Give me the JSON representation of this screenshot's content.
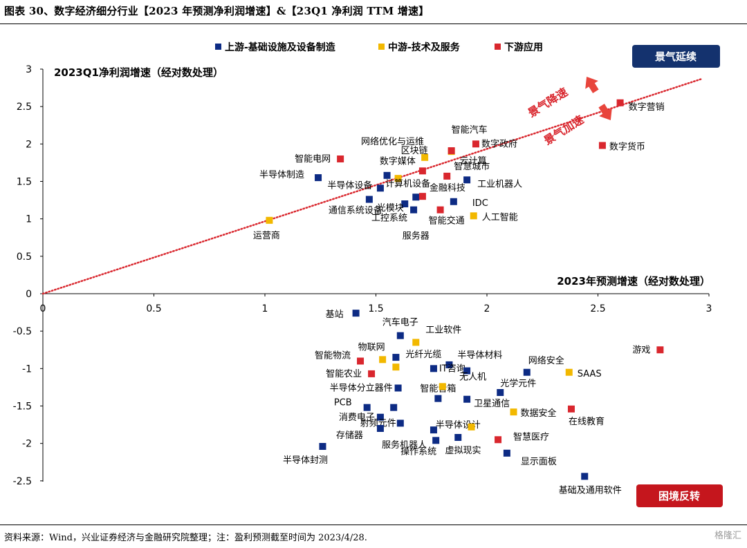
{
  "title": "图表 30、数字经济细分行业【2023 年预测净利润增速】&【23Q1 净利润 TTM 增速】",
  "source": "资料来源：Wind，兴业证券经济与金融研究院整理；注：盈利预测截至时间为 2023/4/28.",
  "watermark": "格隆汇",
  "chart_data": {
    "type": "scatter",
    "xlabel": "2023年预测增速（经对数处理）",
    "ylabel": "2023Q1净利润增速（经对数处理）",
    "xlim": [
      0,
      3
    ],
    "ylim": [
      -2.5,
      3
    ],
    "xticks": [
      "0",
      "0.5",
      "1",
      "1.5",
      "2",
      "2.5",
      "3"
    ],
    "yticks": [
      "3",
      "2.5",
      "2",
      "1.5",
      "1",
      "0.5",
      "0",
      "-0.5",
      "-1",
      "-1.5",
      "-2",
      "-2.5"
    ],
    "grid": false,
    "legend_position": "top",
    "diagonal": {
      "from": [
        0,
        0
      ],
      "to": [
        3,
        3
      ],
      "style": "dotted",
      "color": "#d9272e"
    },
    "annotations": {
      "box_top": "景气延续",
      "box_bottom": "困境反转",
      "arrow_up_text": "景气降速",
      "arrow_down_text": "景气加速"
    },
    "series": [
      {
        "name": "上游-基础设施及设备制造",
        "color": "#0d2b84",
        "points": [
          {
            "label": "半导体制造",
            "x": 1.24,
            "y": 1.55
          },
          {
            "label": "网络优化与运维",
            "x": 1.55,
            "y": 1.58
          },
          {
            "label": "半导体设备",
            "x": 1.52,
            "y": 1.41
          },
          {
            "label": "通信系统设备",
            "x": 1.47,
            "y": 1.26
          },
          {
            "label": "光模块",
            "x": 1.63,
            "y": 1.2
          },
          {
            "label": "工控系统",
            "x": 1.67,
            "y": 1.12
          },
          {
            "label": "服务器",
            "x": 1.68,
            "y": 1.29
          },
          {
            "label": "工业机器人",
            "x": 1.91,
            "y": 1.52
          },
          {
            "label": "IDC",
            "x": 1.85,
            "y": 1.23
          },
          {
            "label": "基站",
            "x": 1.41,
            "y": -0.26
          },
          {
            "label": "汽车电子",
            "x": 1.61,
            "y": -0.56
          },
          {
            "label": "光纤光缆",
            "x": 1.59,
            "y": -0.85
          },
          {
            "label": "半导体材料",
            "x": 1.83,
            "y": -0.95
          },
          {
            "label": "IT咨询",
            "x": 1.76,
            "y": -1.0
          },
          {
            "label": "无人机",
            "x": 1.91,
            "y": -1.03
          },
          {
            "label": "网络安全",
            "x": 2.18,
            "y": -1.05
          },
          {
            "label": "半导体分立器件",
            "x": 1.6,
            "y": -1.26
          },
          {
            "label": "光学元件",
            "x": 2.06,
            "y": -1.32
          },
          {
            "label": "智能音箱",
            "x": 1.78,
            "y": -1.4
          },
          {
            "label": "卫星通信",
            "x": 1.91,
            "y": -1.41
          },
          {
            "label": "PCB",
            "x": 1.46,
            "y": -1.52
          },
          {
            "label": "办公软件",
            "x": 1.58,
            "y": -1.52
          },
          {
            "label": "消费电子",
            "x": 1.52,
            "y": -1.65
          },
          {
            "label": "射频元件",
            "x": 1.61,
            "y": -1.73
          },
          {
            "label": "存储器",
            "x": 1.52,
            "y": -1.8
          },
          {
            "label": "服务机器人",
            "x": 1.76,
            "y": -1.82
          },
          {
            "label": "半导体设计",
            "x": 1.87,
            "y": -1.92
          },
          {
            "label": "操作系统",
            "x": 1.77,
            "y": -1.96
          },
          {
            "label": "半导体封测",
            "x": 1.26,
            "y": -2.04
          },
          {
            "label": "显示面板",
            "x": 2.09,
            "y": -2.13
          },
          {
            "label": "基础及通用软件",
            "x": 2.44,
            "y": -2.44
          }
        ]
      },
      {
        "name": "中游-技术及服务",
        "color": "#f2b800",
        "points": [
          {
            "label": "运营商",
            "x": 1.02,
            "y": 0.98
          },
          {
            "label": "区块链",
            "x": 1.72,
            "y": 1.82
          },
          {
            "label": "云计算",
            "x": 1.84,
            "y": 1.9
          },
          {
            "label": "计算机设备",
            "x": 1.6,
            "y": 1.54
          },
          {
            "label": "人工智能",
            "x": 1.94,
            "y": 1.04
          },
          {
            "label": "工业软件",
            "x": 1.68,
            "y": -0.65
          },
          {
            "label": "物联网",
            "x": 1.53,
            "y": -0.88
          },
          {
            "label": "智能农业",
            "x": 1.59,
            "y": -0.98
          },
          {
            "label": "智能音箱",
            "x": 1.8,
            "y": -1.24
          },
          {
            "label": "SAAS",
            "x": 2.37,
            "y": -1.05
          },
          {
            "label": "数据安全",
            "x": 2.12,
            "y": -1.58
          },
          {
            "label": "虚拟现实",
            "x": 1.93,
            "y": -1.78
          }
        ]
      },
      {
        "name": "下游应用",
        "color": "#d9272e",
        "points": [
          {
            "label": "智能电网",
            "x": 1.34,
            "y": 1.8
          },
          {
            "label": "数字媒体",
            "x": 1.71,
            "y": 1.64
          },
          {
            "label": "智能汽车",
            "x": 1.84,
            "y": 1.91
          },
          {
            "label": "数字政府",
            "x": 1.95,
            "y": 2.0
          },
          {
            "label": "智慧城市",
            "x": 1.82,
            "y": 1.57
          },
          {
            "label": "金融科技",
            "x": 1.71,
            "y": 1.3
          },
          {
            "label": "智能交通",
            "x": 1.79,
            "y": 1.12
          },
          {
            "label": "数字营销",
            "x": 2.6,
            "y": 2.55
          },
          {
            "label": "数字货币",
            "x": 2.52,
            "y": 1.98
          },
          {
            "label": "智能物流",
            "x": 1.43,
            "y": -0.9
          },
          {
            "label": "智能农业",
            "x": 1.48,
            "y": -1.07
          },
          {
            "label": "游戏",
            "x": 2.78,
            "y": -0.75
          },
          {
            "label": "在线教育",
            "x": 2.38,
            "y": -1.54
          },
          {
            "label": "智慧医疗",
            "x": 2.05,
            "y": -1.95
          }
        ]
      }
    ]
  }
}
